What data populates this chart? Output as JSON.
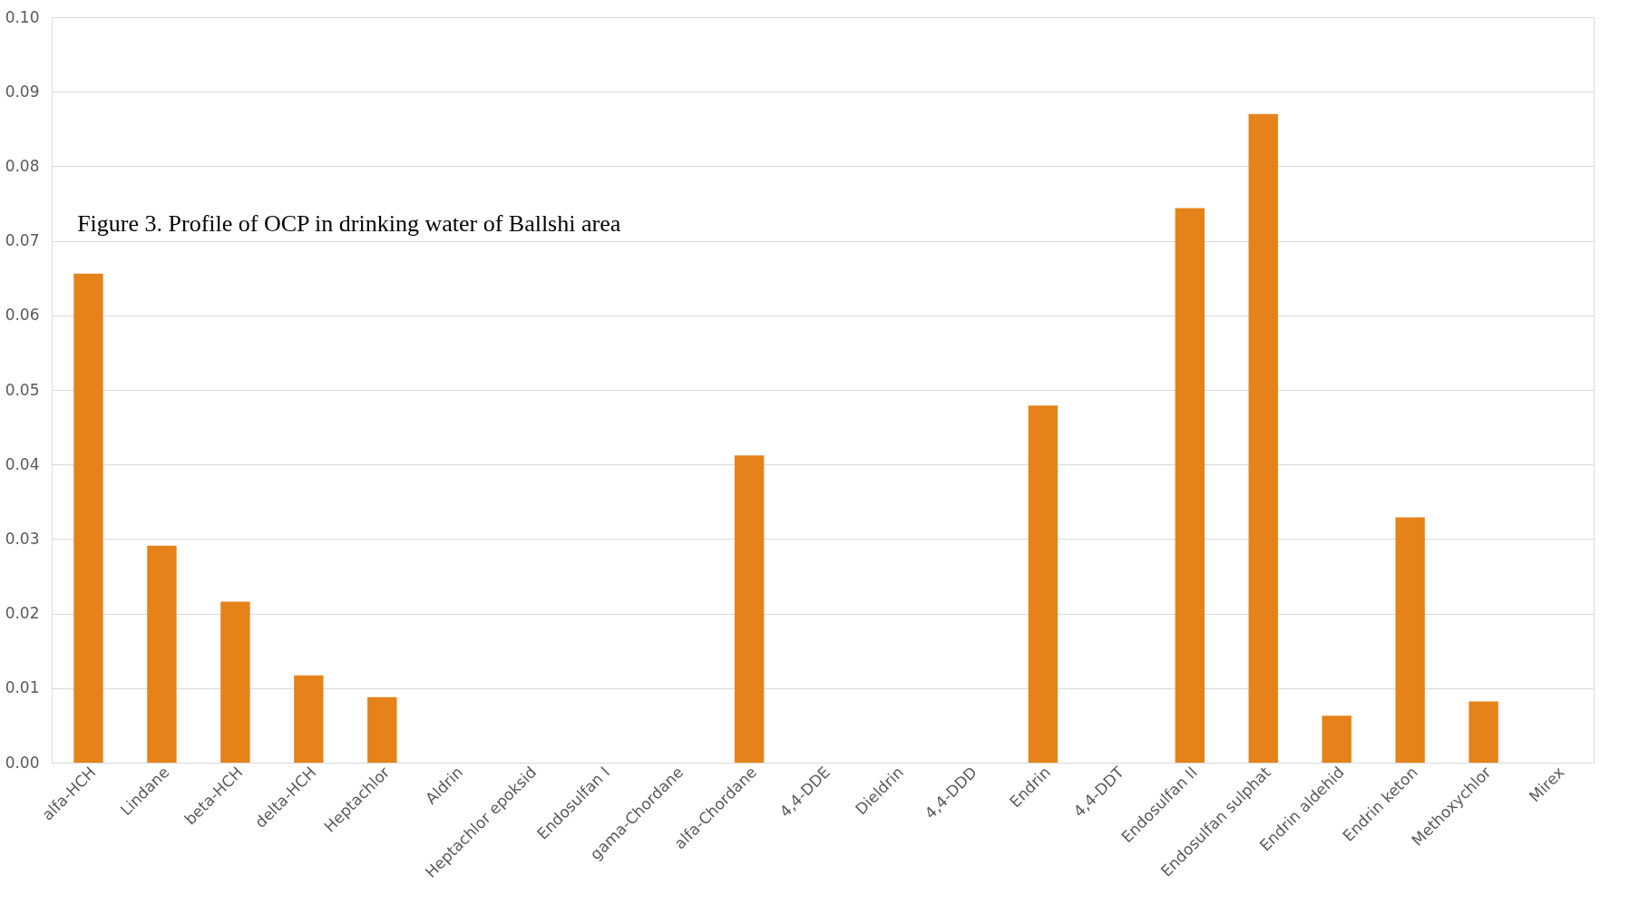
{
  "chart_data": {
    "type": "bar",
    "title": "Figure 3. Profile of OCP in drinking water of Ballshi area",
    "categories": [
      "alfa-HCH",
      "Lindane",
      "beta-HCH",
      "delta-HCH",
      "Heptachlor",
      "Aldrin",
      "Heptachlor epoksid",
      "Endosulfan I",
      "gama-Chordane",
      "alfa-Chordane",
      "4,4-DDE",
      "Dieldrin",
      "4,4-DDD",
      "Endrin",
      "4,4-DDT",
      "Endosulfan II",
      "Endosulfan sulphat",
      "Endrin aldehid",
      "Endrin keton",
      "Methoxychlor",
      "Mirex"
    ],
    "values": [
      0.0656,
      0.0291,
      0.0216,
      0.0117,
      0.0088,
      0,
      0,
      0,
      0,
      0.0412,
      0,
      0,
      0,
      0.0479,
      0,
      0.0744,
      0.087,
      0.0063,
      0.0329,
      0.0082,
      0
    ],
    "color": "#e5821a",
    "ylim": [
      0,
      0.1
    ],
    "yticks": [
      {
        "value": 0,
        "label": "0.00"
      },
      {
        "value": 0.01,
        "label": "0.01"
      },
      {
        "value": 0.02,
        "label": "0.02"
      },
      {
        "value": 0.03,
        "label": "0.03"
      },
      {
        "value": 0.04,
        "label": "0.04"
      },
      {
        "value": 0.05,
        "label": "0.05"
      },
      {
        "value": 0.06,
        "label": "0.06"
      },
      {
        "value": 0.07,
        "label": "0.07"
      },
      {
        "value": 0.08,
        "label": "0.08"
      },
      {
        "value": 0.09,
        "label": "0.09"
      },
      {
        "value": 0.1,
        "label": "0.10"
      }
    ],
    "grid": "y"
  }
}
